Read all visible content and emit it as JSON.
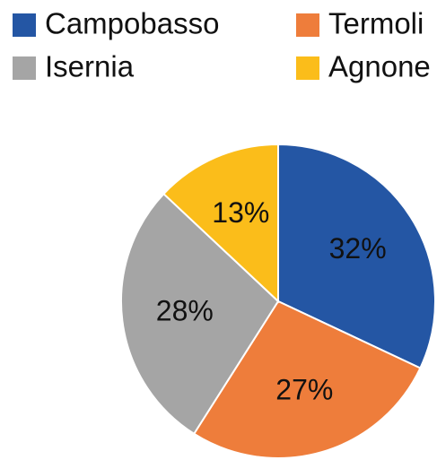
{
  "chart_data": {
    "type": "pie",
    "categories": [
      "Campobasso",
      "Termoli",
      "Isernia",
      "Agnone"
    ],
    "values": [
      32,
      27,
      28,
      13
    ],
    "value_labels": [
      "32%",
      "27%",
      "28%",
      "13%"
    ],
    "colors": [
      "#2456a4",
      "#ee7d3b",
      "#a5a5a5",
      "#fbbd1a"
    ],
    "legend": "top"
  }
}
